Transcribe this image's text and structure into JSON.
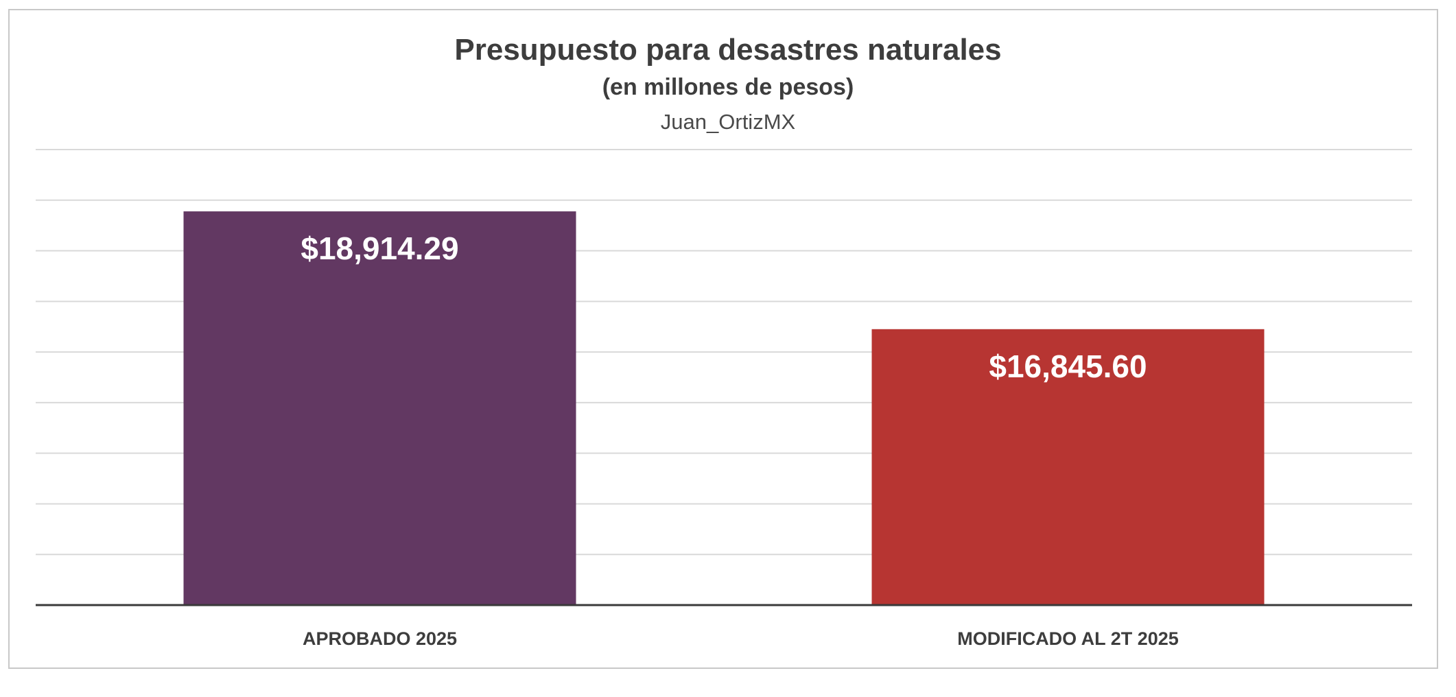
{
  "chart_data": {
    "type": "bar",
    "title": "Presupuesto para desastres naturales",
    "subtitle": "(en millones de pesos)",
    "author": "Juan_OrtizMX",
    "categories": [
      "APROBADO 2025",
      "MODIFICADO AL 2T 2025"
    ],
    "values": [
      18914.29,
      16845.6
    ],
    "value_labels": [
      "$18,914.29",
      "$16,845.60"
    ],
    "colors": [
      "#623862",
      "#b73532"
    ],
    "xlabel": "",
    "ylabel": "",
    "ylim": [
      12000,
      20000
    ],
    "grid": true,
    "gridline_count": 9,
    "legend": "none"
  }
}
